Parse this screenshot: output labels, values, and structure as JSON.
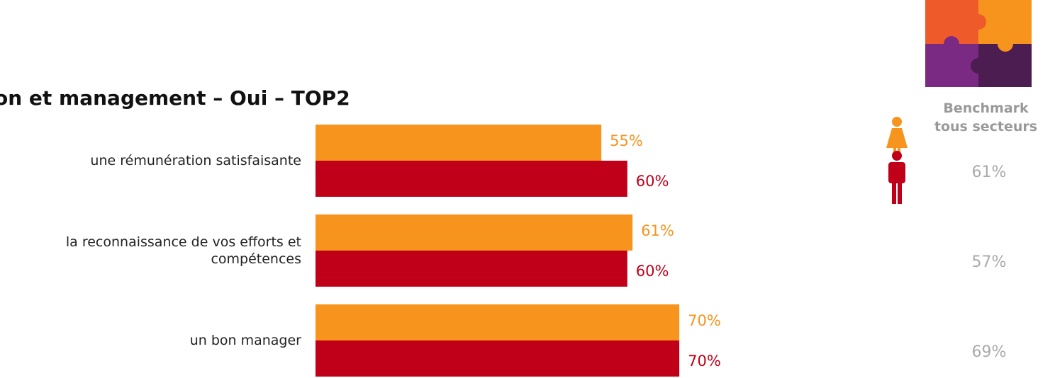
{
  "chart_data": {
    "type": "bar",
    "orientation": "horizontal",
    "title": "on et management – Oui – TOP2",
    "categories": [
      "une rémunération satisfaisante",
      "la reconnaissance de vos efforts et compétences",
      "un bon manager"
    ],
    "series": [
      {
        "color": "#f7941d",
        "values": [
          55,
          61,
          70
        ],
        "value_labels": [
          "55%",
          "61%",
          "70%"
        ]
      },
      {
        "color": "#c00018",
        "values": [
          60,
          60,
          70
        ],
        "value_labels": [
          "60%",
          "60%",
          "70%"
        ]
      }
    ],
    "xlim": [
      0,
      100
    ],
    "benchmark": {
      "title": "Benchmark tous secteurs",
      "color": "#aaaaaa",
      "values": [
        61,
        57,
        69
      ],
      "value_labels": [
        "61%",
        "57%",
        "69%"
      ]
    }
  }
}
